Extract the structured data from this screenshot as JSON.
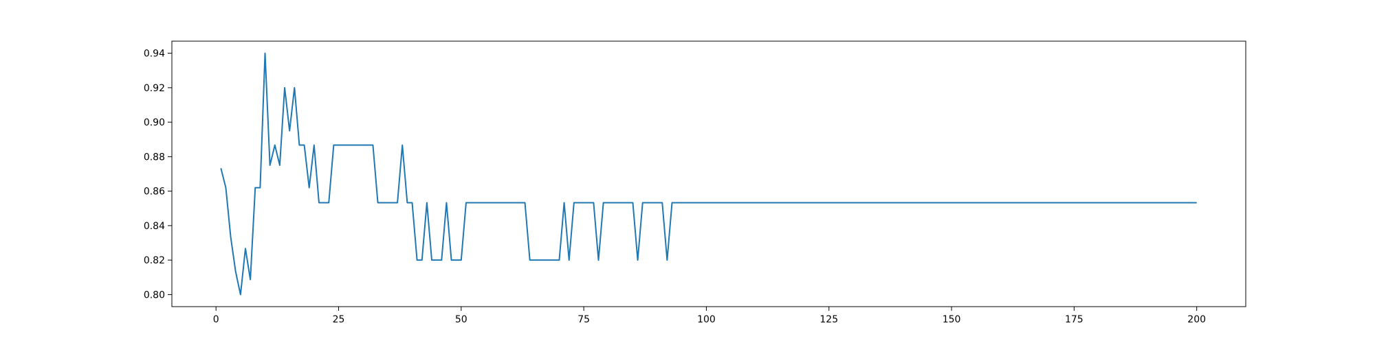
{
  "chart_data": {
    "type": "line",
    "grid": false,
    "xlim": [
      -9,
      210
    ],
    "ylim": [
      0.793,
      0.947
    ],
    "xticks": [
      0,
      25,
      50,
      75,
      100,
      125,
      150,
      175,
      200
    ],
    "yticks": [
      0.8,
      0.82,
      0.84,
      0.86,
      0.88,
      0.9,
      0.92,
      0.94
    ],
    "line_color": "#1f77b4",
    "series": [
      {
        "x_start": 1,
        "x_end": 200,
        "values": [
          0.8733,
          0.862,
          0.8333,
          0.8133,
          0.8,
          0.8267,
          0.8087,
          0.862,
          0.862,
          0.94,
          0.875,
          0.8867,
          0.875,
          0.92,
          0.895,
          0.92,
          0.8867,
          0.8867,
          0.862,
          0.8867,
          0.8533,
          0.8533,
          0.8533,
          0.8867,
          0.8867,
          0.8867,
          0.8867,
          0.8867,
          0.8867,
          0.8867,
          0.8867,
          0.8867,
          0.8533,
          0.8533,
          0.8533,
          0.8533,
          0.8533,
          0.8867,
          0.8533,
          0.8533,
          0.82,
          0.82,
          0.8533,
          0.82,
          0.82,
          0.82,
          0.8533,
          0.82,
          0.82,
          0.82,
          0.8533,
          0.8533,
          0.8533,
          0.8533,
          0.8533,
          0.8533,
          0.8533,
          0.8533,
          0.8533,
          0.8533,
          0.8533,
          0.8533,
          0.8533,
          0.82,
          0.82,
          0.82,
          0.82,
          0.82,
          0.82,
          0.82,
          0.8533,
          0.82,
          0.8533,
          0.8533,
          0.8533,
          0.8533,
          0.8533,
          0.82,
          0.8533,
          0.8533,
          0.8533,
          0.8533,
          0.8533,
          0.8533,
          0.8533,
          0.82,
          0.8533,
          0.8533,
          0.8533,
          0.8533,
          0.8533,
          0.82,
          0.8533,
          0.8533,
          0.8533,
          0.8533,
          0.8533,
          0.8533,
          0.8533,
          0.8533
        ],
        "tail_value": 0.8533
      }
    ]
  }
}
